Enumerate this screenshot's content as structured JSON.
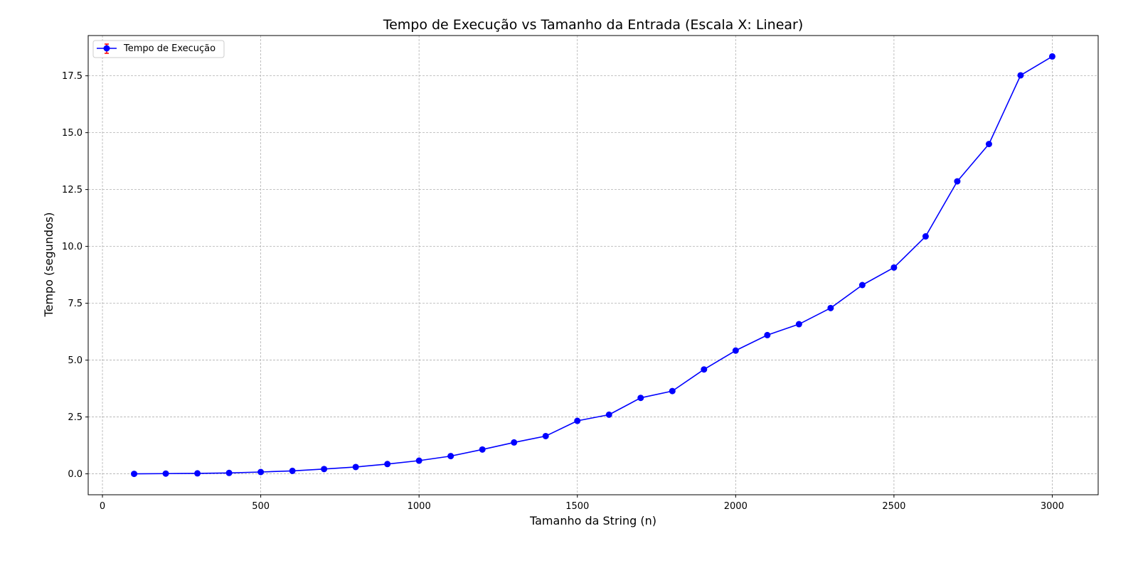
{
  "chart_data": {
    "type": "line",
    "title": "Tempo de Execução vs Tamanho da Entrada (Escala X: Linear)",
    "xlabel": "Tamanho da String (n)",
    "ylabel": "Tempo (segundos)",
    "xlim": [
      -45,
      3145
    ],
    "ylim": [
      -0.92,
      19.27
    ],
    "xticks": [
      0,
      500,
      1000,
      1500,
      2000,
      2500,
      3000
    ],
    "xtick_labels": [
      "0",
      "500",
      "1000",
      "1500",
      "2000",
      "2500",
      "3000"
    ],
    "yticks": [
      0,
      2.5,
      5,
      7.5,
      10,
      12.5,
      15,
      17.5
    ],
    "ytick_labels": [
      "0.0",
      "2.5",
      "5.0",
      "7.5",
      "10.0",
      "12.5",
      "15.0",
      "17.5"
    ],
    "grid": true,
    "legend_position": "top-left",
    "series": [
      {
        "name": "Tempo de Execução",
        "color": "#0000ff",
        "errorbar_color": "#ff0000",
        "marker": "circle",
        "x": [
          100,
          200,
          300,
          400,
          500,
          600,
          700,
          800,
          900,
          1000,
          1100,
          1200,
          1300,
          1400,
          1500,
          1600,
          1700,
          1800,
          1900,
          2000,
          2100,
          2200,
          2300,
          2400,
          2500,
          2600,
          2700,
          2800,
          2900,
          3000
        ],
        "y": [
          0.0,
          0.01,
          0.02,
          0.04,
          0.08,
          0.13,
          0.21,
          0.3,
          0.43,
          0.58,
          0.78,
          1.07,
          1.38,
          1.66,
          2.33,
          2.6,
          3.34,
          3.64,
          4.59,
          5.42,
          6.1,
          6.58,
          7.29,
          8.3,
          9.07,
          10.44,
          12.86,
          14.5,
          17.52,
          18.35
        ]
      }
    ]
  }
}
